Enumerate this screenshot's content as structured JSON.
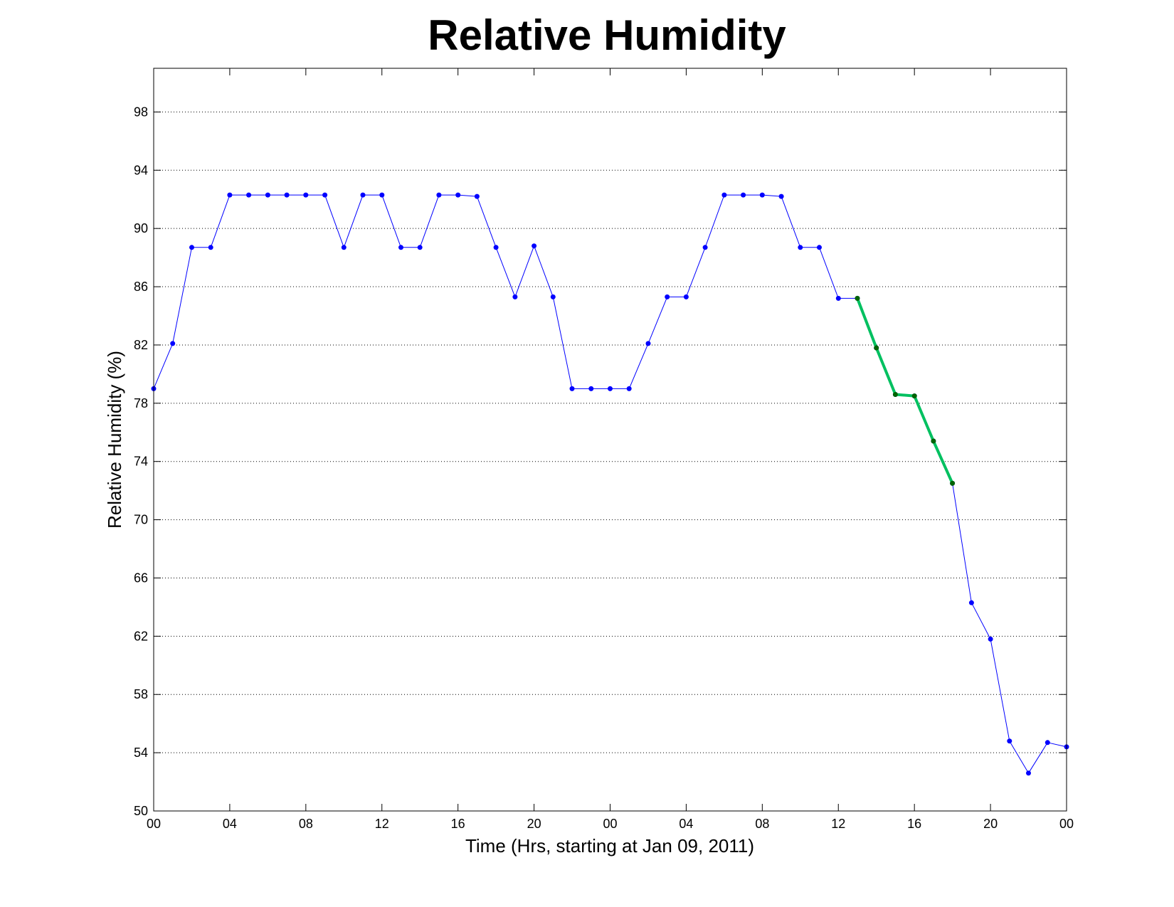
{
  "chart_data": {
    "type": "line",
    "title": "Relative Humidity",
    "xlabel": "Time (Hrs, starting at Jan 09, 2011)",
    "ylabel": "Relative Humidity (%)",
    "xlim": [
      0,
      48
    ],
    "ylim": [
      50,
      101
    ],
    "xticks": [
      0,
      4,
      8,
      12,
      16,
      20,
      24,
      28,
      32,
      36,
      40,
      44,
      48
    ],
    "xtick_labels": [
      "00",
      "04",
      "08",
      "12",
      "16",
      "20",
      "00",
      "04",
      "08",
      "12",
      "16",
      "20",
      "00"
    ],
    "yticks": [
      50,
      54,
      58,
      62,
      66,
      70,
      74,
      78,
      82,
      86,
      90,
      94,
      98
    ],
    "ytick_labels": [
      "50",
      "54",
      "58",
      "62",
      "66",
      "70",
      "74",
      "78",
      "82",
      "86",
      "90",
      "94",
      "98"
    ],
    "grid": "horizontal dotted",
    "series": [
      {
        "color": "#0000ff",
        "marker_color": "#0000ff",
        "x": [
          0,
          1,
          2,
          3,
          4,
          5,
          6,
          7,
          8,
          9,
          10,
          11,
          12,
          13,
          14,
          15,
          16,
          17,
          18,
          19,
          20,
          21,
          22,
          23,
          24,
          25,
          26,
          27,
          28,
          29,
          30,
          31,
          32,
          33,
          34,
          35,
          36,
          37,
          38,
          39,
          40,
          41,
          42,
          43,
          44,
          45,
          46,
          47,
          48
        ],
        "y": [
          79.0,
          82.1,
          88.7,
          88.7,
          92.3,
          92.3,
          92.3,
          92.3,
          92.3,
          92.3,
          88.7,
          92.3,
          92.3,
          88.7,
          88.7,
          92.3,
          92.3,
          92.2,
          88.7,
          85.3,
          88.8,
          85.3,
          79.0,
          79.0,
          79.0,
          79.0,
          82.1,
          85.3,
          85.3,
          88.7,
          92.3,
          92.3,
          92.3,
          92.2,
          88.7,
          88.7,
          85.2,
          85.2,
          81.8,
          78.6,
          78.5,
          75.4,
          72.5,
          64.3,
          61.8,
          54.8,
          52.6,
          54.7,
          54.4
        ]
      },
      {
        "color": "#00c060",
        "marker_color": "#006400",
        "x": [
          37,
          38,
          39,
          40,
          41,
          42
        ],
        "y": [
          85.2,
          81.8,
          78.6,
          78.5,
          75.4,
          72.5
        ]
      }
    ]
  }
}
